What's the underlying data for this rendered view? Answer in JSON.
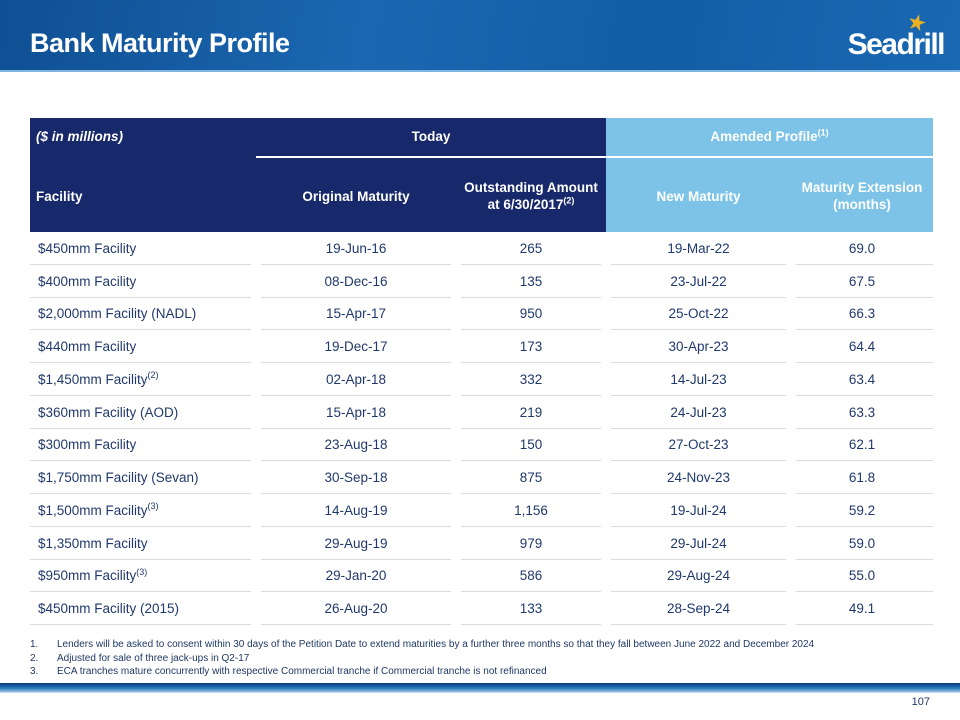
{
  "slide": {
    "title": "Bank Maturity Profile",
    "logo_text": "Seadrill",
    "star_glyph": "★",
    "page_number": "107"
  },
  "table": {
    "units_label": "($ in millions)",
    "groups": {
      "today": "Today",
      "amended": "Amended Profile",
      "amended_sup": "(1)"
    },
    "columns": {
      "facility": "Facility",
      "original_maturity": "Original Maturity",
      "outstanding_line1": "Outstanding Amount",
      "outstanding_line2": "at 6/30/2017",
      "outstanding_sup": "(2)",
      "new_maturity": "New Maturity",
      "extension_line1": "Maturity Extension",
      "extension_line2": "(months)"
    },
    "rows": [
      {
        "facility": "$450mm Facility",
        "sup": "",
        "original_maturity": "19-Jun-16",
        "outstanding": "265",
        "new_maturity": "19-Mar-22",
        "extension": "69.0"
      },
      {
        "facility": "$400mm Facility",
        "sup": "",
        "original_maturity": "08-Dec-16",
        "outstanding": "135",
        "new_maturity": "23-Jul-22",
        "extension": "67.5"
      },
      {
        "facility": "$2,000mm Facility (NADL)",
        "sup": "",
        "original_maturity": "15-Apr-17",
        "outstanding": "950",
        "new_maturity": "25-Oct-22",
        "extension": "66.3"
      },
      {
        "facility": "$440mm Facility",
        "sup": "",
        "original_maturity": "19-Dec-17",
        "outstanding": "173",
        "new_maturity": "30-Apr-23",
        "extension": "64.4"
      },
      {
        "facility": "$1,450mm Facility",
        "sup": "(2)",
        "original_maturity": "02-Apr-18",
        "outstanding": "332",
        "new_maturity": "14-Jul-23",
        "extension": "63.4"
      },
      {
        "facility": "$360mm Facility (AOD)",
        "sup": "",
        "original_maturity": "15-Apr-18",
        "outstanding": "219",
        "new_maturity": "24-Jul-23",
        "extension": "63.3"
      },
      {
        "facility": "$300mm Facility",
        "sup": "",
        "original_maturity": "23-Aug-18",
        "outstanding": "150",
        "new_maturity": "27-Oct-23",
        "extension": "62.1"
      },
      {
        "facility": "$1,750mm Facility (Sevan)",
        "sup": "",
        "original_maturity": "30-Sep-18",
        "outstanding": "875",
        "new_maturity": "24-Nov-23",
        "extension": "61.8"
      },
      {
        "facility": "$1,500mm Facility",
        "sup": "(3)",
        "original_maturity": "14-Aug-19",
        "outstanding": "1,156",
        "new_maturity": "19-Jul-24",
        "extension": "59.2"
      },
      {
        "facility": "$1,350mm Facility",
        "sup": "",
        "original_maturity": "29-Aug-19",
        "outstanding": "979",
        "new_maturity": "29-Jul-24",
        "extension": "59.0"
      },
      {
        "facility": "$950mm Facility",
        "sup": "(3)",
        "original_maturity": "29-Jan-20",
        "outstanding": "586",
        "new_maturity": "29-Aug-24",
        "extension": "55.0"
      },
      {
        "facility": "$450mm Facility (2015)",
        "sup": "",
        "original_maturity": "26-Aug-20",
        "outstanding": "133",
        "new_maturity": "28-Sep-24",
        "extension": "49.1"
      }
    ]
  },
  "footnotes": [
    {
      "num": "1.",
      "text": "Lenders will be asked to consent within 30 days of the Petition Date to extend maturities by a further three months so that they fall between June 2022 and December 2024"
    },
    {
      "num": "2.",
      "text": "Adjusted for sale of three jack-ups in Q2-17"
    },
    {
      "num": "3.",
      "text": "ECA tranches mature concurrently with respective Commercial tranche if Commercial tranche is not refinanced"
    }
  ],
  "colors": {
    "header_navy": "#18296B",
    "header_light_blue": "#7CC3E7",
    "body_text_navy": "#20396B",
    "banner_blue": "#1B67B1",
    "star_gold": "#EDB021",
    "row_separator": "#DCDCDC"
  }
}
